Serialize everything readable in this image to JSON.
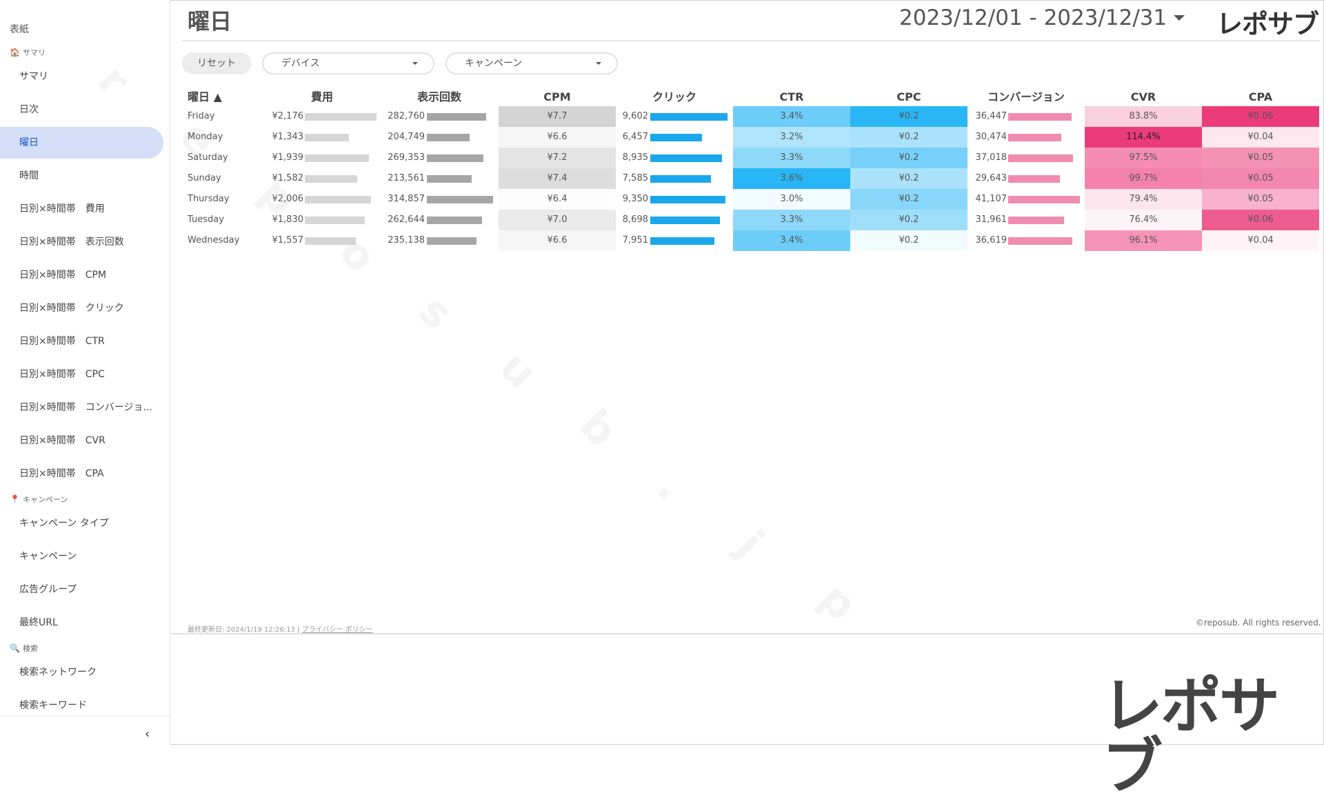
{
  "sidebar": {
    "cover": "表紙",
    "sections": {
      "summary": "サマリ",
      "campaign": "キャンペーン",
      "search": "検索"
    },
    "items": [
      "サマリ",
      "日次",
      "曜日",
      "時間",
      "日別×時間帯　費用",
      "日別×時間帯　表示回数",
      "日別×時間帯　CPM",
      "日別×時間帯　クリック",
      "日別×時間帯　CTR",
      "日別×時間帯　CPC",
      "日別×時間帯　コンバージョ...",
      "日別×時間帯　CVR",
      "日別×時間帯　CPA",
      "キャンペーン タイプ",
      "キャンペーン",
      "広告グループ",
      "最終URL",
      "検索ネットワーク",
      "検索キーワード"
    ],
    "active_item": "曜日",
    "collapse_glyph": "‹"
  },
  "header": {
    "title": "曜日",
    "date_range": "2023/12/01 - 2023/12/31",
    "logo": "レポサブ"
  },
  "filters": {
    "reset": "リセット",
    "device": "デバイス",
    "campaign": "キャンペーン"
  },
  "table": {
    "headers": {
      "day": "曜日 ▲",
      "cost": "費用",
      "impressions": "表示回数",
      "cpm": "CPM",
      "clicks": "クリック",
      "ctr": "CTR",
      "cpc": "CPC",
      "conversions": "コンバージョン",
      "cvr": "CVR",
      "cpa": "CPA"
    },
    "rows": [
      {
        "day": "Friday",
        "cost": "¥2,176",
        "cost_v": 2176,
        "impressions": "282,760",
        "impressions_v": 282760,
        "cpm": "¥7.7",
        "cpm_v": 7.7,
        "clicks": "9,602",
        "clicks_v": 9602,
        "ctr": "3.4%",
        "ctr_v": 3.4,
        "cpc": "¥0.2",
        "cpc_v": 0.23,
        "conversions": "36,447",
        "conversions_v": 36447,
        "cvr": "83.8%",
        "cvr_v": 83.8,
        "cpa": "¥0.06",
        "cpa_v": 0.06
      },
      {
        "day": "Monday",
        "cost": "¥1,343",
        "cost_v": 1343,
        "impressions": "204,749",
        "impressions_v": 204749,
        "cpm": "¥6.6",
        "cpm_v": 6.6,
        "clicks": "6,457",
        "clicks_v": 6457,
        "ctr": "3.2%",
        "ctr_v": 3.2,
        "cpc": "¥0.2",
        "cpc_v": 0.208,
        "conversions": "30,474",
        "conversions_v": 30474,
        "cvr": "114.4%",
        "cvr_v": 114.4,
        "cpa": "¥0.04",
        "cpa_v": 0.044
      },
      {
        "day": "Saturday",
        "cost": "¥1,939",
        "cost_v": 1939,
        "impressions": "269,353",
        "impressions_v": 269353,
        "cpm": "¥7.2",
        "cpm_v": 7.2,
        "clicks": "8,935",
        "clicks_v": 8935,
        "ctr": "3.3%",
        "ctr_v": 3.3,
        "cpc": "¥0.2",
        "cpc_v": 0.217,
        "conversions": "37,018",
        "conversions_v": 37018,
        "cvr": "97.5%",
        "cvr_v": 97.5,
        "cpa": "¥0.05",
        "cpa_v": 0.052
      },
      {
        "day": "Sunday",
        "cost": "¥1,582",
        "cost_v": 1582,
        "impressions": "213,561",
        "impressions_v": 213561,
        "cpm": "¥7.4",
        "cpm_v": 7.4,
        "clicks": "7,585",
        "clicks_v": 7585,
        "ctr": "3.6%",
        "ctr_v": 3.6,
        "cpc": "¥0.2",
        "cpc_v": 0.208,
        "conversions": "29,643",
        "conversions_v": 29643,
        "cvr": "99.7%",
        "cvr_v": 99.7,
        "cpa": "¥0.05",
        "cpa_v": 0.053
      },
      {
        "day": "Thursday",
        "cost": "¥2,006",
        "cost_v": 2006,
        "impressions": "314,857",
        "impressions_v": 314857,
        "cpm": "¥6.4",
        "cpm_v": 6.4,
        "clicks": "9,350",
        "clicks_v": 9350,
        "ctr": "3.0%",
        "ctr_v": 3.0,
        "cpc": "¥0.2",
        "cpc_v": 0.214,
        "conversions": "41,107",
        "conversions_v": 41107,
        "cvr": "79.4%",
        "cvr_v": 79.4,
        "cpa": "¥0.05",
        "cpa_v": 0.049
      },
      {
        "day": "Tuesday",
        "cost": "¥1,830",
        "cost_v": 1830,
        "impressions": "262,644",
        "impressions_v": 262644,
        "cpm": "¥7.0",
        "cpm_v": 7.0,
        "clicks": "8,698",
        "clicks_v": 8698,
        "ctr": "3.3%",
        "ctr_v": 3.3,
        "cpc": "¥0.2",
        "cpc_v": 0.21,
        "conversions": "31,961",
        "conversions_v": 31961,
        "cvr": "76.4%",
        "cvr_v": 76.4,
        "cpa": "¥0.06",
        "cpa_v": 0.057
      },
      {
        "day": "Wednesday",
        "cost": "¥1,557",
        "cost_v": 1557,
        "impressions": "235,138",
        "impressions_v": 235138,
        "cpm": "¥6.6",
        "cpm_v": 6.6,
        "clicks": "7,951",
        "clicks_v": 7951,
        "ctr": "3.4%",
        "ctr_v": 3.4,
        "cpc": "¥0.2",
        "cpc_v": 0.196,
        "conversions": "36,619",
        "conversions_v": 36619,
        "cvr": "96.1%",
        "cvr_v": 96.1,
        "cpa": "¥0.04",
        "cpa_v": 0.043
      }
    ]
  },
  "colors": {
    "bar_gray_light": "#d6d6d6",
    "bar_gray_dark": "#a6a6a6",
    "bar_blue": "#1aa7ec",
    "bar_pink": "#f08cb0",
    "heat_blue": "#29b6f6",
    "heat_pink": "#ec3b79",
    "heat_gray": "#d4d4d4",
    "active_nav": "#d4dff7"
  },
  "watermark": "reposub.jp",
  "footer": {
    "updated": "最終更新日: 2024/1/19 12:26:13",
    "separator": "|",
    "privacy": "プライバシー ポリシー",
    "copyright": "©reposub. All rights reserved."
  }
}
